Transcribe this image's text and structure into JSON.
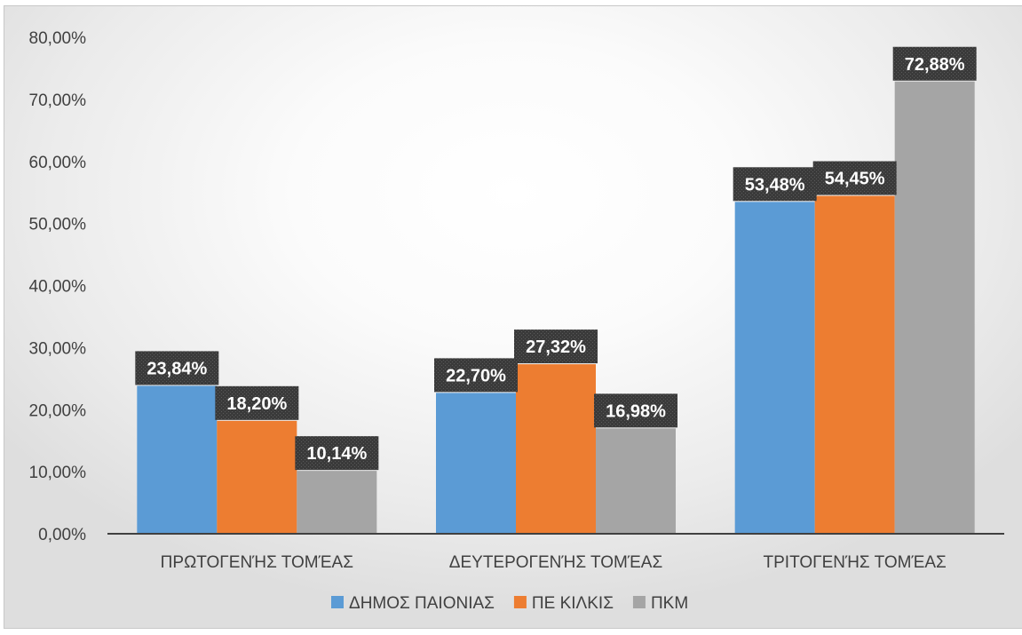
{
  "chart_data": {
    "type": "bar",
    "categories": [
      "ΠΡΩΤΟΓΕΝΉΣ ΤΟΜΈΑΣ",
      "ΔΕΥΤΕΡΟΓΕΝΉΣ ΤΟΜΈΑΣ",
      "ΤΡΙΤΟΓΕΝΉΣ ΤΟΜΈΑΣ"
    ],
    "series": [
      {
        "name": "ΔΗΜΟΣ ΠΑΙΟΝΙΑΣ",
        "color": "#5b9bd5",
        "values": [
          23.84,
          22.7,
          53.48
        ],
        "labels": [
          "23,84%",
          "22,70%",
          "53,48%"
        ]
      },
      {
        "name": "ΠΕ ΚΙΛΚΙΣ",
        "color": "#ed7d31",
        "values": [
          18.2,
          27.32,
          54.45
        ],
        "labels": [
          "18,20%",
          "27,32%",
          "54,45%"
        ]
      },
      {
        "name": "ΠΚΜ",
        "color": "#a5a5a5",
        "values": [
          10.14,
          16.98,
          72.88
        ],
        "labels": [
          "10,14%",
          "16,98%",
          "72,88%"
        ]
      }
    ],
    "ylim": [
      0,
      80
    ],
    "yticks": [
      0,
      10,
      20,
      30,
      40,
      50,
      60,
      70,
      80
    ],
    "ytick_labels": [
      "0,00%",
      "10,00%",
      "20,00%",
      "30,00%",
      "40,00%",
      "50,00%",
      "60,00%",
      "70,00%",
      "80,00%"
    ],
    "title": "",
    "xlabel": "",
    "ylabel": "",
    "grid": false,
    "legend_position": "bottom",
    "data_label_box_color": "#3a3a3a",
    "axis_color": "#404040"
  }
}
